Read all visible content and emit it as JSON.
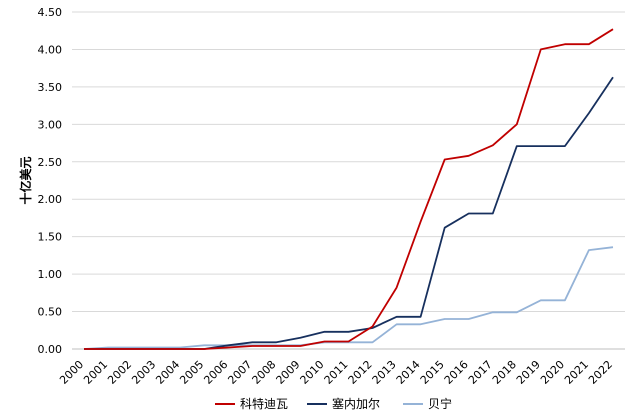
{
  "chart_data": {
    "type": "line",
    "ylabel": "十亿美元",
    "ylim": [
      0,
      4.5
    ],
    "yticks": [
      "0.00",
      "0.50",
      "1.00",
      "1.50",
      "2.00",
      "2.50",
      "3.00",
      "3.50",
      "4.00",
      "4.50"
    ],
    "grid": "horizontal",
    "legend_position": "bottom",
    "x": [
      "2000",
      "2001",
      "2002",
      "2003",
      "2004",
      "2005",
      "2006",
      "2007",
      "2008",
      "2009",
      "2010",
      "2011",
      "2012",
      "2013",
      "2014",
      "2015",
      "2016",
      "2017",
      "2018",
      "2019",
      "2020",
      "2021",
      "2022"
    ],
    "series": [
      {
        "name": "科特迪瓦",
        "color": "#c00000",
        "values": [
          0.0,
          0.0,
          0.0,
          0.0,
          0.0,
          0.0,
          0.02,
          0.04,
          0.04,
          0.04,
          0.1,
          0.1,
          0.3,
          0.82,
          1.7,
          2.53,
          2.58,
          2.72,
          3.0,
          4.0,
          4.07,
          4.07,
          4.27
        ]
      },
      {
        "name": "塞内加尔",
        "color": "#17305e",
        "values": [
          0.0,
          0.0,
          0.0,
          0.0,
          0.0,
          0.0,
          0.05,
          0.09,
          0.09,
          0.15,
          0.23,
          0.23,
          0.28,
          0.43,
          0.43,
          1.62,
          1.81,
          1.81,
          2.71,
          2.71,
          2.71,
          3.15,
          3.63
        ]
      },
      {
        "name": "贝宁",
        "color": "#95b3d7",
        "values": [
          0.0,
          0.02,
          0.02,
          0.02,
          0.02,
          0.05,
          0.05,
          0.05,
          0.05,
          0.05,
          0.09,
          0.09,
          0.09,
          0.33,
          0.33,
          0.4,
          0.4,
          0.49,
          0.49,
          0.65,
          0.65,
          1.32,
          1.36
        ]
      }
    ]
  }
}
